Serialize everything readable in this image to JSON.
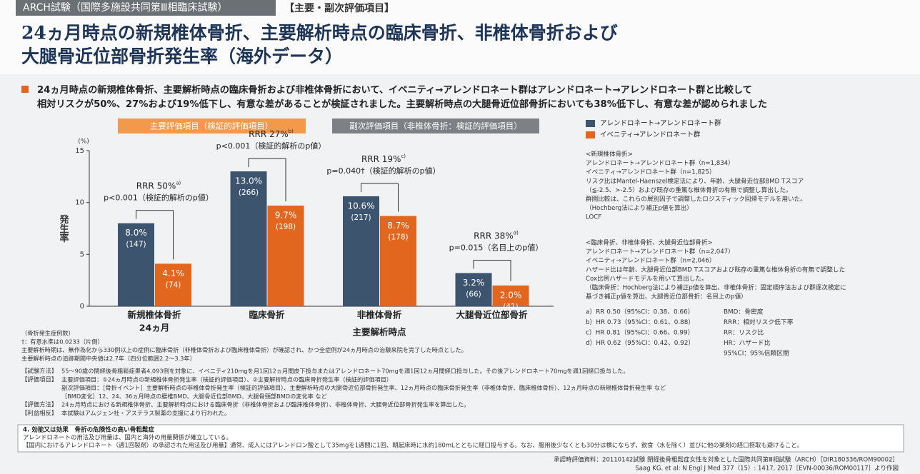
{
  "header": {
    "study": "ARCH試験（国際多施設共同第Ⅲ相臨床試験）",
    "tag": "【主要・副次評価項目】",
    "title_lines": [
      "24ヵ月時点の新規椎体骨折、主要解析時点の臨床骨折、非椎体骨折および",
      "大腿骨近位部骨折発生率（海外データ）"
    ]
  },
  "summary": [
    "24ヵ月時点の新規椎体骨折、主要解析時点の臨床骨折および非椎体骨折において、イベニティ→アレンドロネート群はアレンドロネート→アレンドロネート群と比較して",
    "相対リスクが50%、27%および19%低下し、有意な差があることが検証されました。主要解析時点の大腿骨近位部骨折においても38%低下し、有意な差が認められました"
  ],
  "sections": [
    "主要評価項目（検証的評価項目）",
    "副次評価項目（非椎体骨折：検証的評価項目）"
  ],
  "chart_data": {
    "type": "bar",
    "y_label": "発生率",
    "y_unit": "(%)",
    "categories": [
      "新規椎体骨折",
      "臨床骨折",
      "非椎体骨折",
      "大腿骨近位部骨折"
    ],
    "category_sublabel": "24ヵ月",
    "group_label": "主要解析時点",
    "ylim": [
      0,
      15
    ],
    "yticks": [
      0,
      5,
      10,
      15
    ],
    "grid": false,
    "series": [
      {
        "name": "アレンドロネート→アレンドロネート群",
        "color": "#3d546e",
        "values": [
          8.0,
          13.0,
          10.6,
          3.2
        ],
        "value_labels": [
          "8.0%",
          "13.0%",
          "10.6%",
          "3.2%"
        ],
        "n": [
          147,
          266,
          217,
          66
        ],
        "n_labels": [
          "(147)",
          "(266)",
          "(217)",
          "(66)"
        ]
      },
      {
        "name": "イベニティ→アレンドロネート群",
        "color": "#e2661d",
        "values": [
          4.1,
          9.7,
          8.7,
          2.0
        ],
        "value_labels": [
          "4.1%",
          "9.7%",
          "8.7%",
          "2.0%"
        ],
        "n": [
          74,
          198,
          178,
          41
        ],
        "n_labels": [
          "(74)",
          "(198)",
          "(178)",
          "(41)"
        ]
      }
    ],
    "annotations": [
      {
        "rrr": "RRR 50%",
        "ref": "a)",
        "p": "p<0.001（検証的解析のp値）"
      },
      {
        "rrr": "RRR 27%",
        "ref": "b)",
        "p": "p<0.001（検証的解析のp値）"
      },
      {
        "rrr": "RRR 19%",
        "ref": "c)",
        "p": "p=0.040†（検証的解析のp値）"
      },
      {
        "rrr": "RRR 38%",
        "ref": "d)",
        "p": "p=0.015（名目上のp値）"
      }
    ]
  },
  "side_notes": {
    "block1": [
      "<新規椎体骨折>",
      "アレンドロネート→アレンドロネート群（n=1,834）",
      "イベニティ→アレンドロネート群（n=1,825）",
      "リスク比はMantel-Haenszel検定法により、年齢、大腿骨近位部BMD Tスコア",
      "（≦-2.5、>-2.5）および既存の重篤な椎体骨折の有無で調整し算出した。",
      "群間比較は、これらの層別因子で調整したロジスティック回帰モデルを用いた。",
      "（Hochberg法により補正p値を算出）",
      "LOCF"
    ],
    "block2": [
      "<臨床骨折、非椎体骨折、大腿骨近位部骨折>",
      "アレンドロネート→アレンドロネート群（n=2,047）",
      "イベニティ→アレンドロネート群（n=2,046）",
      "ハザード比は年齢、大腿骨近位部BMD Tスコアおよび既存の重篤な椎体骨折の有無で調整した",
      "Cox比例ハザードモデルを用いて算出した。",
      "（臨床骨折：Hochberg法により補正p値を算出、非椎体骨折：固定順序法および群逐次検定に",
      "基づき補正p値を算出、大腿骨近位部骨折：名目上のp値）"
    ],
    "ratios": [
      "a）RR 0.50（95%CI：0.38、0.66）",
      "b）HR 0.73（95%CI：0.61、0.88）",
      "c）HR 0.81（95%CI：0.66、0.99）",
      "d）HR 0.62（95%CI：0.42、0.92）"
    ],
    "abbreviations": [
      "BMD：骨密度",
      "RRR：相対リスク低下率",
      "RR：リスク比",
      "HR：ハザード比",
      "95%CI：95%信頼区間"
    ]
  },
  "footnotes": [
    "（骨折発生症例数）",
    "†：有意水準は0.0233（片側）",
    "主要解析時期は、無作為化から330例以上の症例に臨床骨折（非椎体骨折および臨床椎体骨折）が確認され、かつ全症例が24ヵ月時点の治験来院を完了した時点とした。",
    "主要解析時点の追跡期間中央値は2.7年（四分位範囲2.2～3.3年）"
  ],
  "methods": [
    {
      "label": "【試験方法】",
      "lines": [
        "55～90歳の閉経後骨粗鬆症患者4,093例を対象に、イベニティ210mgを月1回12ヵ月間皮下投与またはアレンドロネート70mgを週1回12ヵ月間経口投与した。その後アレンドロネート70mgを週1回経口投与した。"
      ]
    },
    {
      "label": "【評価項目】",
      "lines": [
        "主要評価項目：①24ヵ月時点の新規椎体骨折発生率（検証的評価項目）、②主要解析時点の臨床骨折発生率（検証的評価項目）",
        "副次評価項目：［骨折イベント］主要解析時点の非椎体骨折発生率（検証的評価項目）、主要解析時点の大腿骨近位部骨折発生率、12ヵ月時点の臨床骨折発生率（非椎体骨折、臨床椎体骨折）、12ヵ月時点の新規椎体骨折発生率 など",
        "［BMD変化］12、24、36ヵ月時点の腰椎BMD、大腿骨近位部BMD、大腿骨頸部BMDの変化率 など"
      ]
    },
    {
      "label": "【評価方法】",
      "lines": [
        "24ヵ月時点における新規椎体骨折、主要解析時点における臨床骨折（非椎体骨折および臨床椎体骨折）、非椎体骨折、大腿骨近位部骨折発生率を算出した。"
      ]
    },
    {
      "label": "【利益相反】",
      "lines": [
        "本試験はアムジェン社・アステラス製薬の支援により行われた。"
      ]
    }
  ],
  "box": [
    "4. 効能又は効果　骨折の危険性の高い骨粗鬆症",
    "アレンドロネートの用法及び用量は、国内と海外の用量関係が確立している。",
    "【国内におけるアレンドロネート（週1回製剤）の承認された用法及び用量】通常、成人にはアレンドロン酸として35mgを1週間に1回、朝起床時に水約180mLとともに経口投与する。なお、服用後少なくとも30分は横にならず、飲食（水を除く）並びに他の薬剤の経口摂取も避けること。"
  ],
  "references": [
    "承認時評価資料：20110142試験 閉経後骨粗鬆症女性を対象とした国際共同第Ⅲ相試験（ARCH）［DIR180336/ROM90002］",
    "Saag KG. et al: N Engl J Med 377（15）: 1417, 2017［EVN-00036/ROM00117］より作図"
  ]
}
